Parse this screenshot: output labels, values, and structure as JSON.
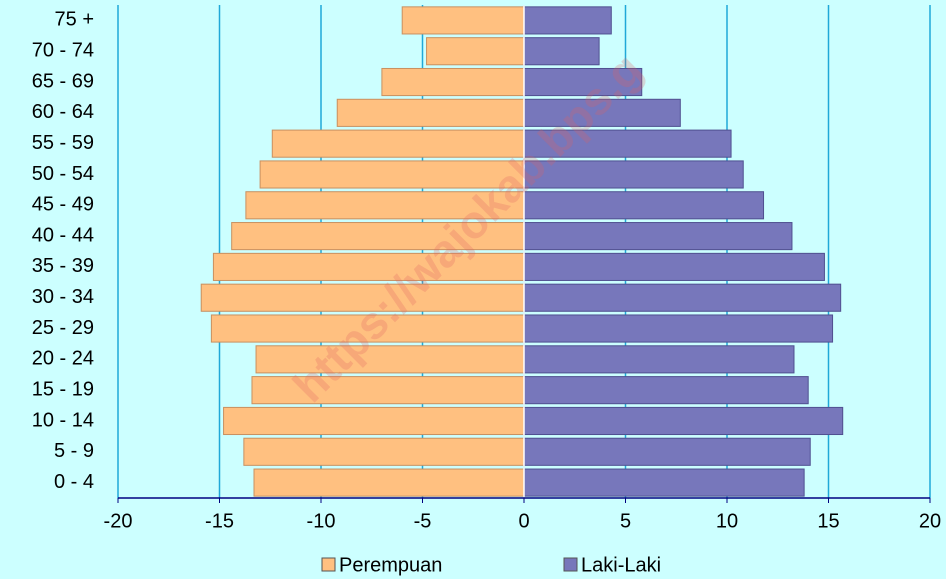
{
  "chart_data": {
    "type": "pyramid",
    "categories": [
      "0 - 4",
      "5 - 9",
      "10 - 14",
      "15 - 19",
      "20 - 24",
      "25 - 29",
      "30 - 34",
      "35 - 39",
      "40 - 44",
      "45 - 49",
      "50 - 54",
      "55 - 59",
      "60 - 64",
      "65 - 69",
      "70 - 74",
      "75 +"
    ],
    "series": [
      {
        "name": "Perempuan",
        "color": "#ffc080",
        "values": [
          -13.3,
          -13.8,
          -14.8,
          -13.4,
          -13.2,
          -15.4,
          -15.9,
          -15.3,
          -14.4,
          -13.7,
          -13.0,
          -12.4,
          -9.2,
          -7.0,
          -4.8,
          -6.0
        ]
      },
      {
        "name": "Laki-Laki",
        "color": "#7777bb",
        "values": [
          13.8,
          14.1,
          15.7,
          14.0,
          13.3,
          15.2,
          15.6,
          14.8,
          13.2,
          11.8,
          10.8,
          10.2,
          7.7,
          5.8,
          3.7,
          4.3
        ]
      }
    ],
    "xlim": [
      -20,
      20
    ],
    "xticks": [
      -20,
      -15,
      -10,
      -5,
      0,
      5,
      10,
      15,
      20
    ],
    "grid": true,
    "legend": "bottom",
    "watermark": "https://wajokab.bps.g"
  }
}
